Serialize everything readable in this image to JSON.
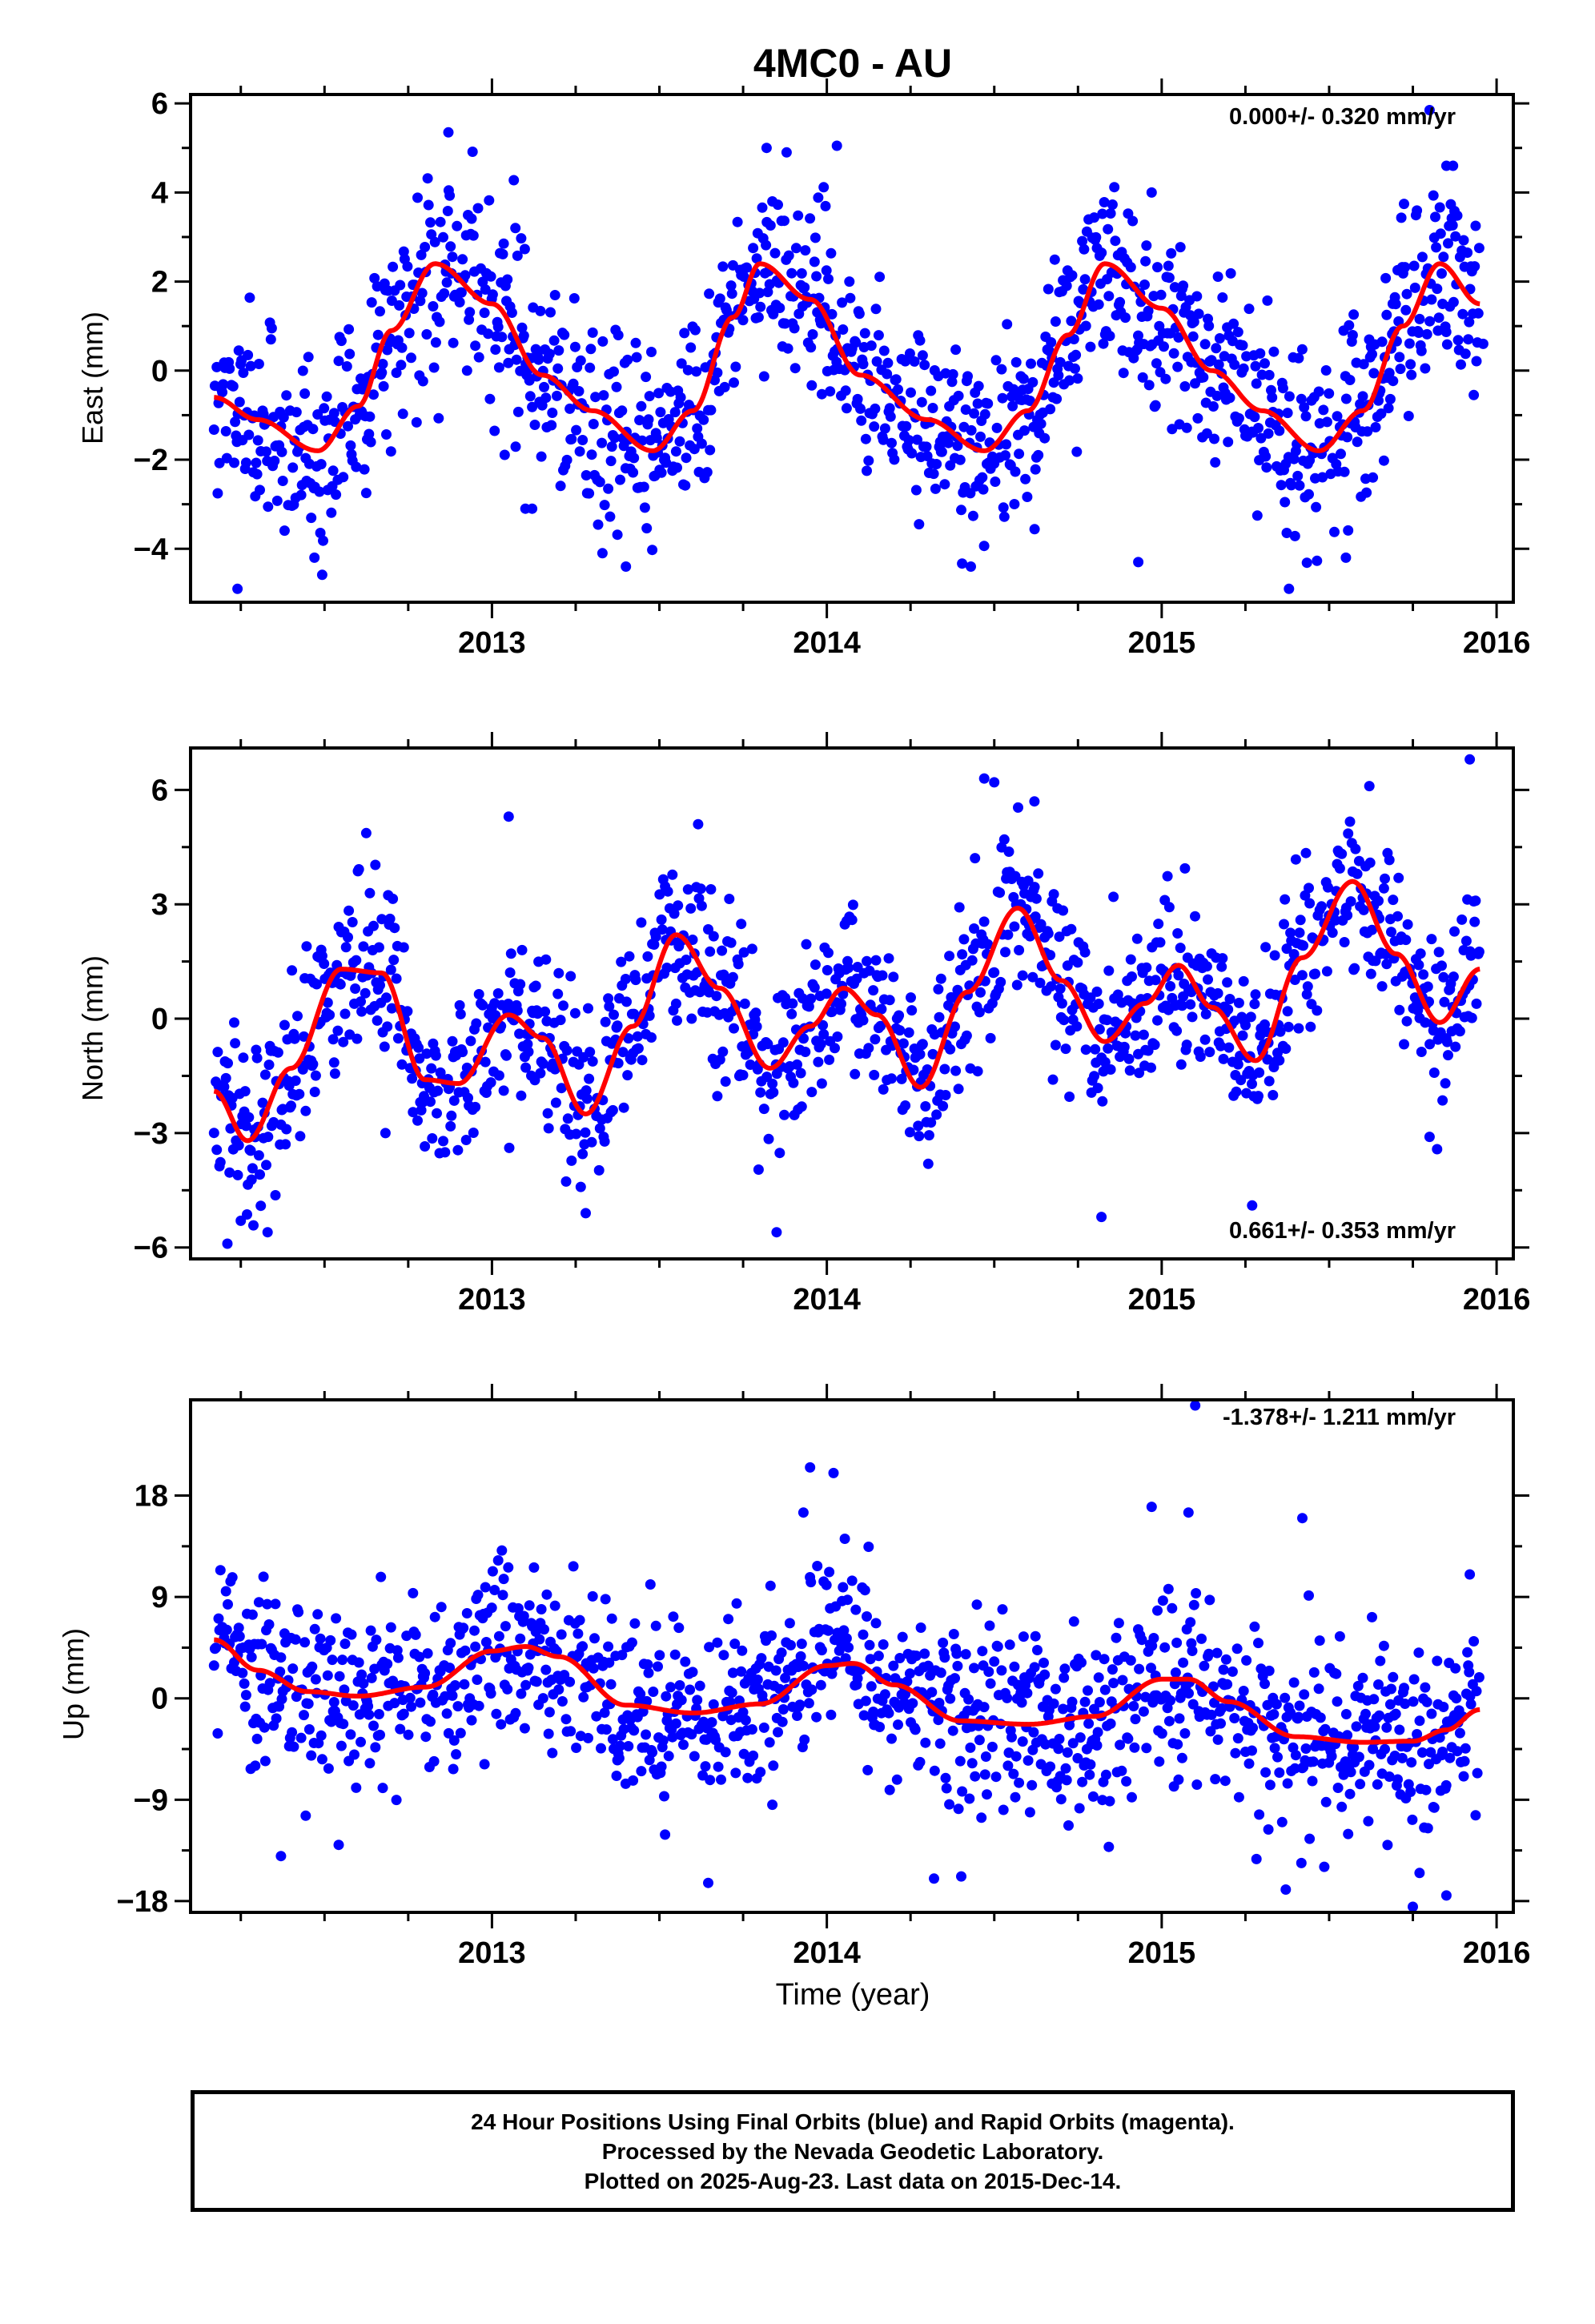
{
  "title": "4MC0 - AU",
  "colors": {
    "points": "#0000ff",
    "fit": "#ff0000",
    "frame": "#000000"
  },
  "chart_data": [
    {
      "type": "scatter",
      "ylabel": "East (mm)",
      "rate_label": "0.000+/- 0.320 mm/yr",
      "rate_position": "top-right",
      "xlim": [
        2012.1,
        2016.05
      ],
      "ylim": [
        -5.2,
        6.2
      ],
      "x_ticks": [
        2013,
        2014,
        2015,
        2016
      ],
      "x_tick_labels": [
        "2013",
        "2014",
        "2015",
        "2016"
      ],
      "y_ticks": [
        -4,
        -2,
        0,
        2,
        4,
        6
      ],
      "y_tick_labels": [
        "−4",
        "−2",
        "0",
        "2",
        "4",
        "6"
      ],
      "series": [
        {
          "role": "daily positions (final orbits)",
          "start": 2012.17,
          "end": 2015.95,
          "scatter_sd": 1.1
        },
        {
          "role": "seasonal fit",
          "fit_x": [
            2012.17,
            2012.3,
            2012.48,
            2012.6,
            2012.7,
            2012.83,
            2013.0,
            2013.15,
            2013.3,
            2013.48,
            2013.6,
            2013.72,
            2013.8,
            2013.95,
            2014.1,
            2014.3,
            2014.47,
            2014.6,
            2014.72,
            2014.83,
            2015.0,
            2015.15,
            2015.3,
            2015.47,
            2015.6,
            2015.72,
            2015.83,
            2015.95
          ],
          "fit_y": [
            -0.6,
            -1.1,
            -1.8,
            -0.8,
            0.9,
            2.4,
            1.5,
            -0.1,
            -0.9,
            -1.8,
            -0.9,
            1.2,
            2.4,
            1.6,
            -0.1,
            -1.1,
            -1.8,
            -0.9,
            0.8,
            2.4,
            1.4,
            0.0,
            -0.9,
            -1.8,
            -0.9,
            1.0,
            2.4,
            1.5
          ]
        },
        {
          "role": "outliers",
          "x": [
            2012.87,
            2013.07,
            2013.4,
            2013.82,
            2013.88,
            2014.03,
            2014.43,
            2014.93,
            2014.97,
            2015.38,
            2015.69,
            2015.8,
            2015.85,
            2015.87,
            2012.24,
            2012.47,
            2013.1,
            2013.12,
            2013.33,
            2015.55,
            2015.96
          ],
          "y": [
            5.35,
            3.2,
            -4.4,
            5.0,
            4.9,
            5.05,
            -4.4,
            -4.3,
            4.0,
            -4.9,
            1.5,
            5.85,
            4.6,
            4.6,
            -4.9,
            -4.2,
            -3.1,
            -3.1,
            -4.1,
            -4.2,
            0.6
          ]
        }
      ]
    },
    {
      "type": "scatter",
      "ylabel": "North (mm)",
      "rate_label": "0.661+/- 0.353 mm/yr",
      "rate_position": "bottom-right",
      "xlim": [
        2012.1,
        2016.05
      ],
      "ylim": [
        -6.3,
        7.1
      ],
      "x_ticks": [
        2013,
        2014,
        2015,
        2016
      ],
      "x_tick_labels": [
        "2013",
        "2014",
        "2015",
        "2016"
      ],
      "y_ticks": [
        -6,
        -3,
        0,
        3,
        6
      ],
      "y_tick_labels": [
        "−6",
        "−3",
        "0",
        "3",
        "6"
      ],
      "series": [
        {
          "role": "daily positions (final orbits)",
          "start": 2012.17,
          "end": 2015.95,
          "scatter_sd": 1.15
        },
        {
          "role": "seasonal fit",
          "fit_x": [
            2012.17,
            2012.27,
            2012.4,
            2012.55,
            2012.67,
            2012.8,
            2012.9,
            2013.05,
            2013.15,
            2013.28,
            2013.42,
            2013.55,
            2013.68,
            2013.83,
            2013.95,
            2014.05,
            2014.15,
            2014.28,
            2014.42,
            2014.57,
            2014.7,
            2014.83,
            2014.95,
            2015.05,
            2015.15,
            2015.28,
            2015.42,
            2015.57,
            2015.7,
            2015.83,
            2015.95
          ],
          "fit_y": [
            -1.9,
            -3.2,
            -1.3,
            1.3,
            1.2,
            -1.6,
            -1.7,
            0.1,
            -0.5,
            -2.5,
            -0.2,
            2.2,
            0.8,
            -1.3,
            -0.2,
            0.8,
            0.1,
            -1.8,
            0.7,
            2.9,
            1.0,
            -0.6,
            0.4,
            1.4,
            0.3,
            -1.1,
            1.6,
            3.6,
            1.7,
            -0.1,
            1.3
          ]
        },
        {
          "role": "outliers",
          "x": [
            2013.05,
            2014.47,
            2014.5,
            2014.62,
            2015.62,
            2015.92,
            2012.21,
            2012.25,
            2012.33,
            2013.28,
            2013.85,
            2014.82,
            2015.27,
            2015.8
          ],
          "y": [
            5.3,
            6.3,
            6.2,
            5.7,
            6.1,
            6.8,
            -5.9,
            -5.3,
            -5.6,
            -5.1,
            -5.6,
            -5.2,
            -4.9,
            -3.1
          ]
        }
      ]
    },
    {
      "type": "scatter",
      "ylabel": "Up (mm)",
      "xlabel": "Time (year)",
      "rate_label": "-1.378+/- 1.211 mm/yr",
      "rate_position": "top-right",
      "xlim": [
        2012.1,
        2016.05
      ],
      "ylim": [
        -19,
        26.5
      ],
      "x_ticks": [
        2013,
        2014,
        2015,
        2016
      ],
      "x_tick_labels": [
        "2013",
        "2014",
        "2015",
        "2016"
      ],
      "y_ticks": [
        -18,
        -9,
        0,
        9,
        18
      ],
      "y_tick_labels": [
        "−18",
        "−9",
        "0",
        "9",
        "18"
      ],
      "series": [
        {
          "role": "daily positions (final orbits)",
          "start": 2012.17,
          "end": 2015.95,
          "scatter_sd": 4.2
        },
        {
          "role": "seasonal fit",
          "fit_x": [
            2012.17,
            2012.3,
            2012.45,
            2012.6,
            2012.8,
            2013.0,
            2013.1,
            2013.2,
            2013.4,
            2013.6,
            2013.8,
            2014.0,
            2014.08,
            2014.2,
            2014.4,
            2014.6,
            2014.8,
            2015.0,
            2015.08,
            2015.2,
            2015.4,
            2015.6,
            2015.75,
            2015.85,
            2015.95
          ],
          "fit_y": [
            5.2,
            2.5,
            0.6,
            0.2,
            1.0,
            4.2,
            4.6,
            3.7,
            -0.6,
            -1.3,
            -0.5,
            2.9,
            3.1,
            1.2,
            -2.0,
            -2.3,
            -1.6,
            1.7,
            1.7,
            -0.3,
            -3.4,
            -3.9,
            -3.8,
            -2.8,
            -1.0
          ]
        },
        {
          "role": "outliers",
          "x": [
            2013.95,
            2013.93,
            2014.02,
            2014.97,
            2015.08,
            2015.1,
            2015.42,
            2015.75,
            2015.92,
            2012.37,
            2014.32,
            2015.77,
            2015.85
          ],
          "y": [
            20.5,
            16.5,
            20.0,
            17.0,
            16.5,
            26.0,
            16.0,
            -18.5,
            11.0,
            -14.0,
            -16.0,
            -15.5,
            -17.5
          ]
        }
      ]
    }
  ],
  "footer": {
    "line1": "24 Hour Positions Using Final Orbits (blue) and Rapid Orbits (magenta).",
    "line2": "Processed by the Nevada Geodetic Laboratory.",
    "line3": "Plotted on 2025-Aug-23. Last data on 2015-Dec-14."
  }
}
